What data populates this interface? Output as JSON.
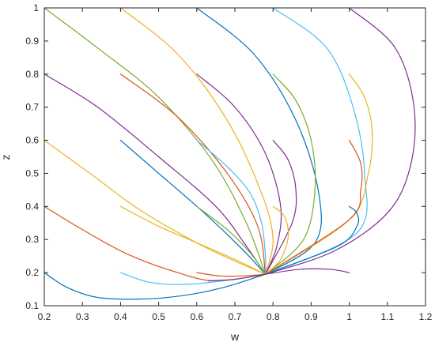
{
  "chart_data": {
    "type": "line",
    "xlabel": "w",
    "ylabel": "z",
    "xlim": [
      0.2,
      1.2
    ],
    "ylim": [
      0.1,
      1.0
    ],
    "x_ticks": [
      "0.2",
      "0.3",
      "0.4",
      "0.5",
      "0.6",
      "0.7",
      "0.8",
      "0.9",
      "1",
      "1.1",
      "1.2"
    ],
    "y_ticks": [
      "0.1",
      "0.2",
      "0.3",
      "0.4",
      "0.5",
      "0.6",
      "0.7",
      "0.8",
      "0.9",
      "1"
    ],
    "grid": false,
    "box": true,
    "equilibrium": [
      0.78,
      0.195
    ],
    "colors": [
      "#0072BD",
      "#D95319",
      "#EDB120",
      "#7E2F8E",
      "#77AC30",
      "#4DBEEE"
    ],
    "series": [
      {
        "color": "#0072BD",
        "points": [
          [
            0.2,
            0.2
          ],
          [
            0.26,
            0.155
          ],
          [
            0.34,
            0.125
          ],
          [
            0.45,
            0.12
          ],
          [
            0.56,
            0.13
          ],
          [
            0.67,
            0.155
          ],
          [
            0.78,
            0.195
          ]
        ]
      },
      {
        "color": "#D95319",
        "points": [
          [
            0.2,
            0.4
          ],
          [
            0.3,
            0.33
          ],
          [
            0.42,
            0.255
          ],
          [
            0.55,
            0.2
          ],
          [
            0.65,
            0.175
          ],
          [
            0.78,
            0.195
          ]
        ]
      },
      {
        "color": "#EDB120",
        "points": [
          [
            0.2,
            0.6
          ],
          [
            0.32,
            0.5
          ],
          [
            0.45,
            0.39
          ],
          [
            0.6,
            0.29
          ],
          [
            0.7,
            0.235
          ],
          [
            0.78,
            0.195
          ]
        ]
      },
      {
        "color": "#7E2F8E",
        "points": [
          [
            0.2,
            0.8
          ],
          [
            0.34,
            0.7
          ],
          [
            0.5,
            0.55
          ],
          [
            0.65,
            0.4
          ],
          [
            0.73,
            0.28
          ],
          [
            0.78,
            0.195
          ]
        ]
      },
      {
        "color": "#77AC30",
        "points": [
          [
            0.2,
            1.0
          ],
          [
            0.35,
            0.87
          ],
          [
            0.5,
            0.73
          ],
          [
            0.64,
            0.54
          ],
          [
            0.73,
            0.35
          ],
          [
            0.78,
            0.195
          ]
        ]
      },
      {
        "color": "#EDB120",
        "points": [
          [
            0.4,
            1.0
          ],
          [
            0.55,
            0.86
          ],
          [
            0.68,
            0.66
          ],
          [
            0.77,
            0.44
          ],
          [
            0.8,
            0.3
          ],
          [
            0.78,
            0.195
          ]
        ]
      },
      {
        "color": "#0072BD",
        "points": [
          [
            0.6,
            1.0
          ],
          [
            0.75,
            0.86
          ],
          [
            0.86,
            0.66
          ],
          [
            0.92,
            0.44
          ],
          [
            0.91,
            0.29
          ],
          [
            0.78,
            0.195
          ]
        ]
      },
      {
        "color": "#4DBEEE",
        "points": [
          [
            0.8,
            1.0
          ],
          [
            0.94,
            0.88
          ],
          [
            1.01,
            0.7
          ],
          [
            1.04,
            0.5
          ],
          [
            1.02,
            0.32
          ],
          [
            0.78,
            0.195
          ]
        ]
      },
      {
        "color": "#7E2F8E",
        "points": [
          [
            1.0,
            1.0
          ],
          [
            1.12,
            0.88
          ],
          [
            1.17,
            0.7
          ],
          [
            1.16,
            0.52
          ],
          [
            1.1,
            0.38
          ],
          [
            0.96,
            0.265
          ],
          [
            0.78,
            0.195
          ]
        ]
      },
      {
        "color": "#0072BD",
        "points": [
          [
            0.4,
            0.6
          ],
          [
            0.5,
            0.5
          ],
          [
            0.62,
            0.38
          ],
          [
            0.72,
            0.27
          ],
          [
            0.78,
            0.195
          ]
        ]
      },
      {
        "color": "#D95319",
        "points": [
          [
            0.4,
            0.8
          ],
          [
            0.55,
            0.67
          ],
          [
            0.68,
            0.5
          ],
          [
            0.76,
            0.34
          ],
          [
            0.78,
            0.195
          ]
        ]
      },
      {
        "color": "#7E2F8E",
        "points": [
          [
            0.6,
            0.8
          ],
          [
            0.7,
            0.7
          ],
          [
            0.78,
            0.56
          ],
          [
            0.82,
            0.4
          ],
          [
            0.81,
            0.28
          ],
          [
            0.78,
            0.195
          ]
        ]
      },
      {
        "color": "#77AC30",
        "points": [
          [
            0.8,
            0.8
          ],
          [
            0.86,
            0.72
          ],
          [
            0.9,
            0.6
          ],
          [
            0.91,
            0.45
          ],
          [
            0.88,
            0.3
          ],
          [
            0.78,
            0.195
          ]
        ]
      },
      {
        "color": "#EDB120",
        "points": [
          [
            1.0,
            0.8
          ],
          [
            1.04,
            0.73
          ],
          [
            1.06,
            0.63
          ],
          [
            1.05,
            0.5
          ],
          [
            1.0,
            0.36
          ],
          [
            0.78,
            0.195
          ]
        ]
      },
      {
        "color": "#4DBEEE",
        "points": [
          [
            0.6,
            0.6
          ],
          [
            0.68,
            0.52
          ],
          [
            0.74,
            0.44
          ],
          [
            0.77,
            0.35
          ],
          [
            0.78,
            0.25
          ],
          [
            0.78,
            0.195
          ]
        ]
      },
      {
        "color": "#7E2F8E",
        "points": [
          [
            0.8,
            0.6
          ],
          [
            0.84,
            0.54
          ],
          [
            0.86,
            0.45
          ],
          [
            0.85,
            0.35
          ],
          [
            0.78,
            0.195
          ]
        ]
      },
      {
        "color": "#D95319",
        "points": [
          [
            1.0,
            0.6
          ],
          [
            1.03,
            0.53
          ],
          [
            1.03,
            0.45
          ],
          [
            1.0,
            0.36
          ],
          [
            0.78,
            0.195
          ]
        ]
      },
      {
        "color": "#EDB120",
        "points": [
          [
            0.4,
            0.4
          ],
          [
            0.5,
            0.34
          ],
          [
            0.6,
            0.29
          ],
          [
            0.7,
            0.24
          ],
          [
            0.78,
            0.195
          ]
        ]
      },
      {
        "color": "#77AC30",
        "points": [
          [
            0.6,
            0.4
          ],
          [
            0.68,
            0.33
          ],
          [
            0.74,
            0.26
          ],
          [
            0.78,
            0.195
          ]
        ]
      },
      {
        "color": "#EDB120",
        "points": [
          [
            0.8,
            0.4
          ],
          [
            0.83,
            0.37
          ],
          [
            0.84,
            0.31
          ],
          [
            0.82,
            0.24
          ],
          [
            0.78,
            0.195
          ]
        ]
      },
      {
        "color": "#0072BD",
        "points": [
          [
            1.0,
            0.4
          ],
          [
            1.02,
            0.38
          ],
          [
            1.02,
            0.34
          ],
          [
            0.97,
            0.28
          ],
          [
            0.78,
            0.195
          ]
        ]
      },
      {
        "color": "#4DBEEE",
        "points": [
          [
            0.4,
            0.2
          ],
          [
            0.48,
            0.17
          ],
          [
            0.58,
            0.165
          ],
          [
            0.7,
            0.18
          ],
          [
            0.78,
            0.195
          ]
        ]
      },
      {
        "color": "#D95319",
        "points": [
          [
            0.6,
            0.2
          ],
          [
            0.66,
            0.19
          ],
          [
            0.72,
            0.19
          ],
          [
            0.78,
            0.195
          ]
        ]
      },
      {
        "color": "#7E2F8E",
        "points": [
          [
            0.8,
            0.2
          ],
          [
            0.78,
            0.195
          ]
        ]
      },
      {
        "color": "#7E2F8E",
        "points": [
          [
            1.0,
            0.2
          ],
          [
            0.95,
            0.21
          ],
          [
            0.87,
            0.21
          ],
          [
            0.78,
            0.195
          ]
        ]
      },
      {
        "color": "#7E2F8E",
        "points": [
          [
            0.63,
            0.175
          ],
          [
            0.7,
            0.18
          ],
          [
            0.78,
            0.195
          ]
        ]
      }
    ]
  }
}
